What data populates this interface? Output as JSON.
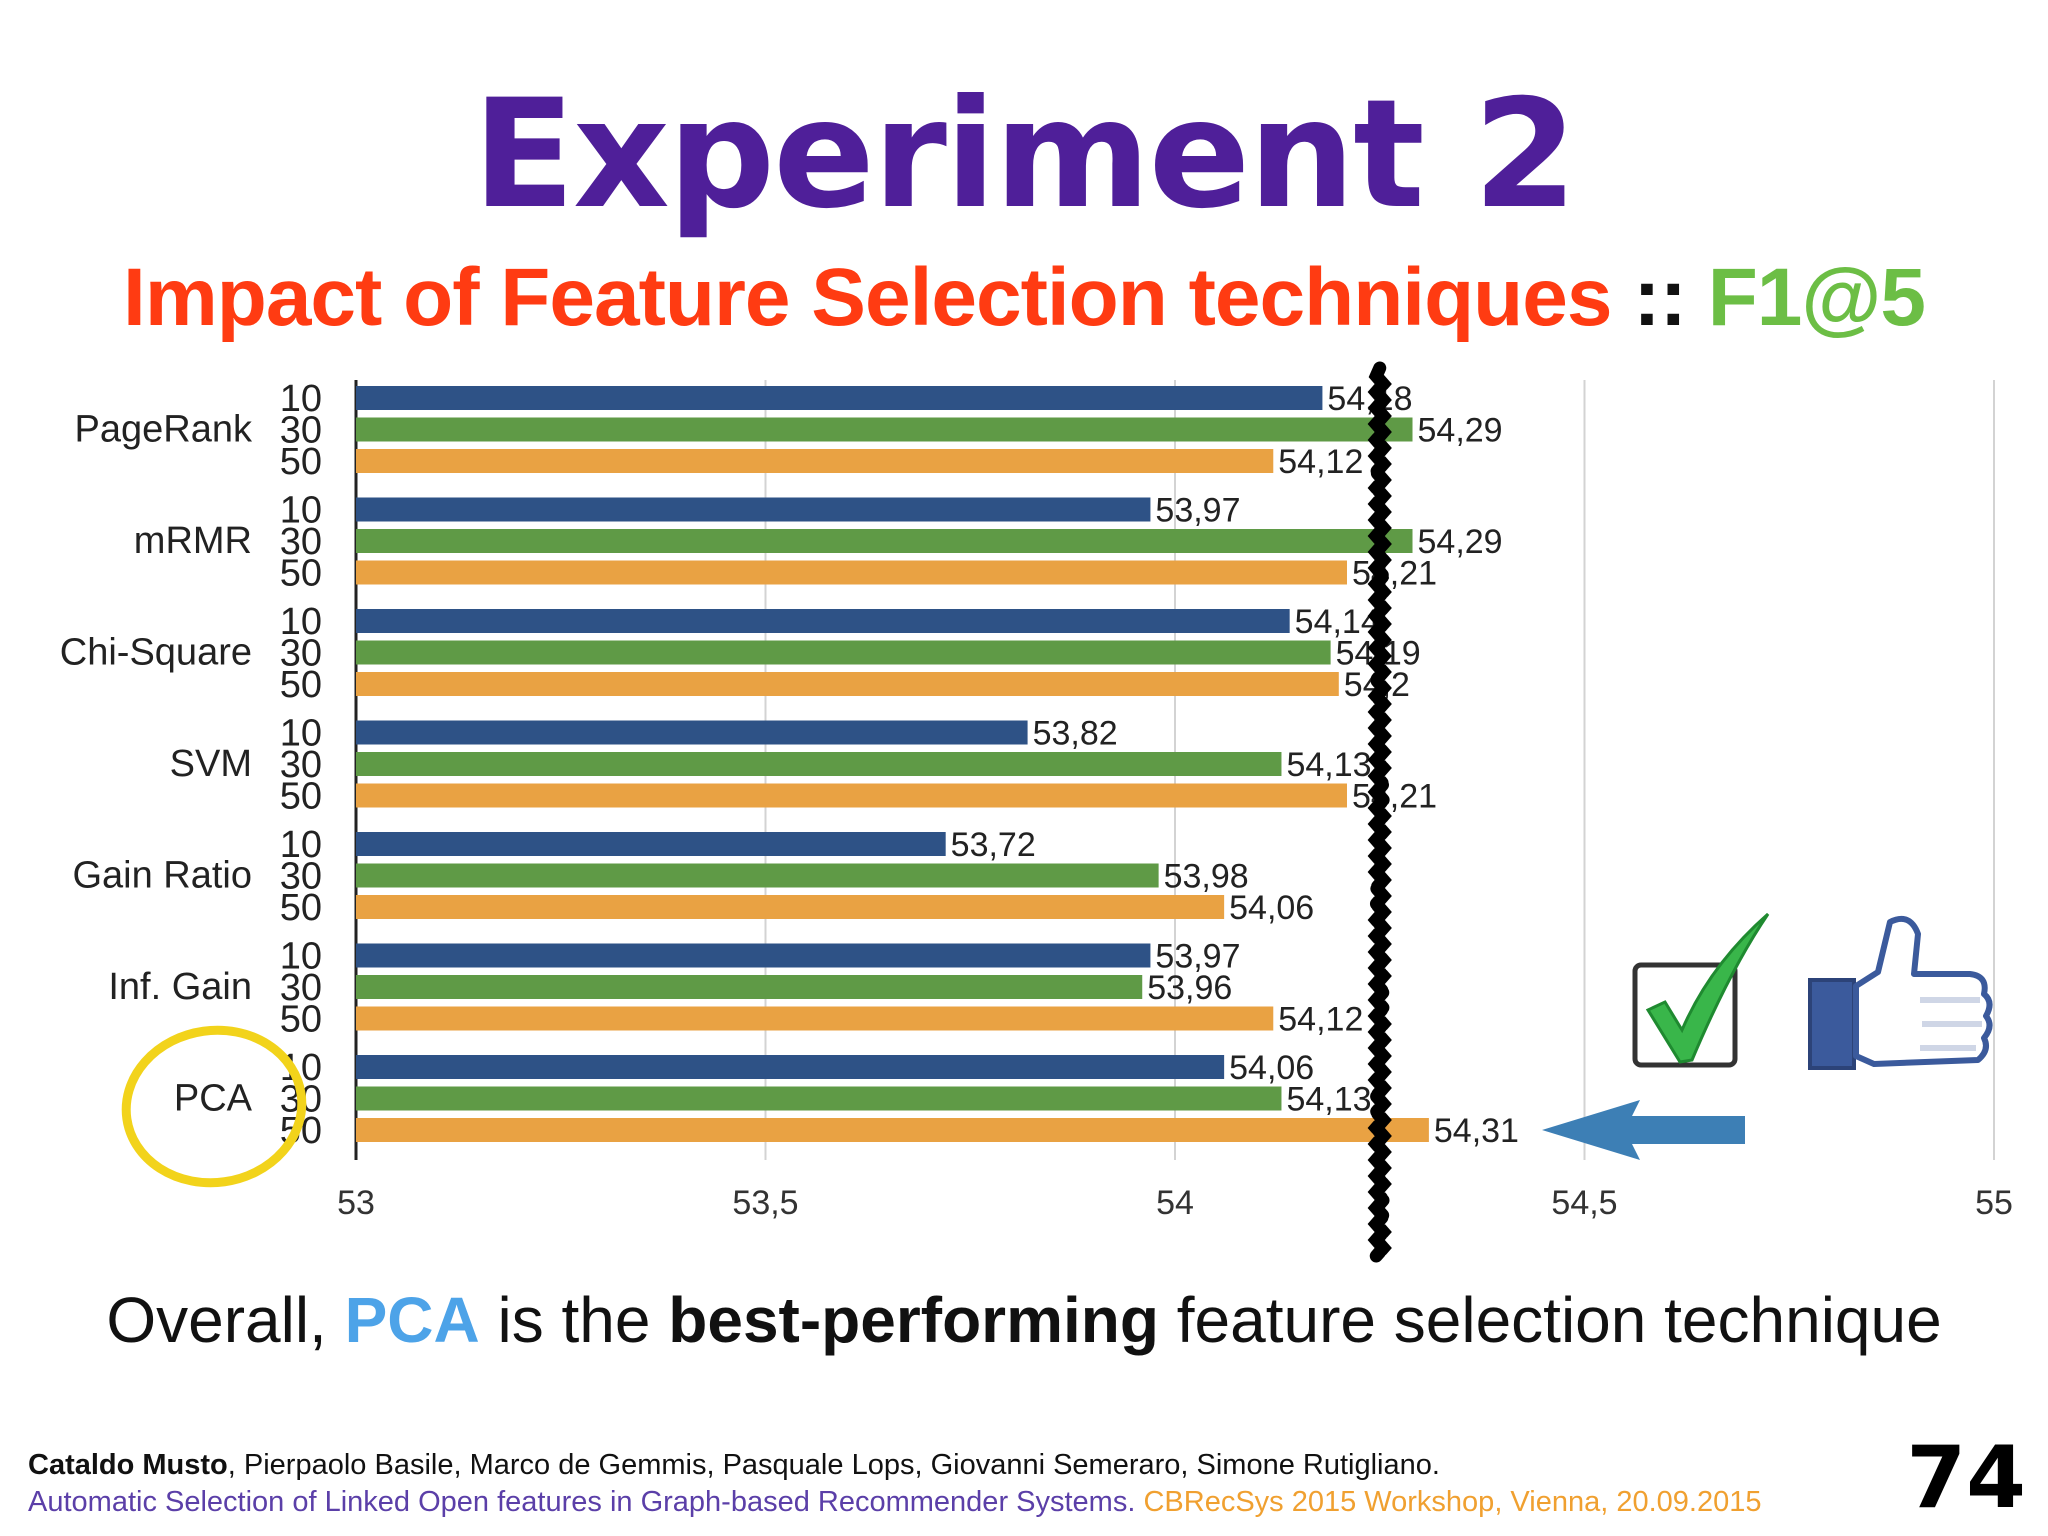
{
  "slide": {
    "title": "Experiment 2",
    "subtitle_main": "Impact of Feature Selection techniques",
    "subtitle_separator": "::",
    "subtitle_metric": "F1@5",
    "summary_prefix": "Overall,",
    "summary_highlight": "PCA",
    "summary_middle": "is the",
    "summary_bold": "best-performing",
    "summary_suffix": "feature selection technique",
    "footer_lead_author": "Cataldo Musto",
    "footer_other_authors": ", Pierpaolo Basile, Marco de Gemmis, Pasquale Lops, Giovanni Semeraro, Simone Rutigliano.",
    "footer_paper_title": "Automatic Selection of Linked Open features in Graph-based Recommender Systems.",
    "footer_venue": "CBRecSys 2015 Workshop, Vienna, 20.09.2015",
    "slide_number": "74"
  },
  "colors": {
    "title": "#4f1f99",
    "subtitle": "#ff3b12",
    "metric": "#6cbe45",
    "series_10": "#2e5286",
    "series_30": "#5f9a46",
    "series_50": "#e9a243",
    "highlight": "#4da3e8",
    "circle": "#f2d31b",
    "arrow": "#3d7fb5"
  },
  "chart_data": {
    "type": "bar",
    "orientation": "horizontal",
    "title": "Impact of Feature Selection techniques :: F1@5",
    "categories": [
      "PageRank",
      "mRMR",
      "Chi-Square",
      "SVM",
      "Gain Ratio",
      "Inf. Gain",
      "PCA"
    ],
    "sub_categories": [
      "10",
      "30",
      "50"
    ],
    "series": [
      {
        "name": "10",
        "values": [
          54.18,
          53.97,
          54.14,
          53.82,
          53.72,
          53.97,
          54.06
        ]
      },
      {
        "name": "30",
        "values": [
          54.29,
          54.29,
          54.19,
          54.13,
          53.98,
          53.96,
          54.13
        ]
      },
      {
        "name": "50",
        "values": [
          54.12,
          54.21,
          54.2,
          54.21,
          54.06,
          54.12,
          54.31
        ]
      }
    ],
    "value_labels": [
      [
        "54,18",
        "54,29",
        "54,12"
      ],
      [
        "53,97",
        "54,29",
        "54,21"
      ],
      [
        "54,14",
        "54,19",
        "54,2"
      ],
      [
        "53,82",
        "54,13",
        "54,21"
      ],
      [
        "53,72",
        "53,98",
        "54,06"
      ],
      [
        "53,97",
        "53,96",
        "54,12"
      ],
      [
        "54,06",
        "54,13",
        "54,31"
      ]
    ],
    "x_ticks": [
      53,
      53.5,
      54,
      54.5,
      55
    ],
    "x_tick_labels": [
      "53",
      "53,5",
      "54",
      "54,5",
      "55"
    ],
    "xlim": [
      53,
      55
    ],
    "xlabel": "",
    "ylabel": "",
    "grid": true,
    "reference_line": 54.25,
    "annotations": [
      "PCA circled",
      "arrow pointing at PCA 50 bar",
      "checkmark icon",
      "thumbs-up icon"
    ]
  }
}
